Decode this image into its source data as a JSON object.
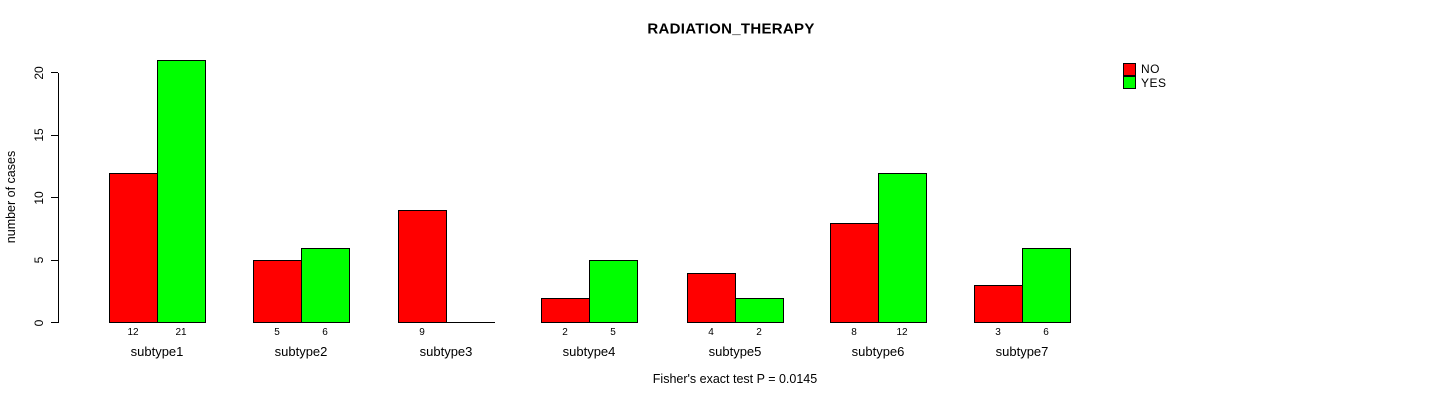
{
  "title": "RADIATION_THERAPY",
  "footer": "Fisher's exact test P = 0.0145",
  "legend": {
    "entries": [
      {
        "label": "NO",
        "color": "#FF0000"
      },
      {
        "label": "YES",
        "color": "#00FF00"
      }
    ]
  },
  "chart_data": {
    "type": "bar",
    "title": "RADIATION_THERAPY",
    "categories": [
      "subtype1",
      "subtype2",
      "subtype3",
      "subtype4",
      "subtype5",
      "subtype6",
      "subtype7"
    ],
    "series": [
      {
        "name": "NO",
        "color": "#FF0000",
        "values": [
          12,
          5,
          9,
          2,
          4,
          8,
          3
        ]
      },
      {
        "name": "YES",
        "color": "#00FF00",
        "values": [
          21,
          6,
          0,
          5,
          2,
          12,
          6
        ]
      }
    ],
    "xlabel": "",
    "ylabel": "number of cases",
    "ylim": [
      0,
      21
    ],
    "yticks": [
      0,
      5,
      10,
      15,
      20
    ],
    "bar_value_labels_shown": true,
    "zero_value_labels_hidden": true,
    "grid": false,
    "legend_position": "top-right",
    "annotation": "Fisher's exact test P = 0.0145"
  }
}
